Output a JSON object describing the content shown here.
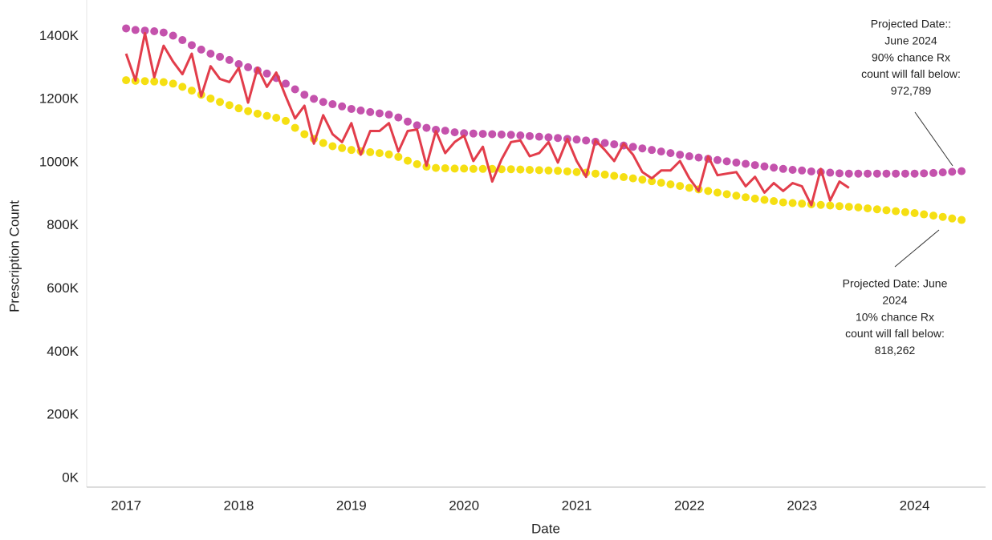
{
  "chart_data": {
    "type": "line",
    "x_label": "Date",
    "y_label": "Prescription Count",
    "x": [
      2017,
      2017.083,
      2017.167,
      2017.25,
      2017.333,
      2017.417,
      2017.5,
      2017.583,
      2017.667,
      2017.75,
      2017.833,
      2017.917,
      2018,
      2018.083,
      2018.167,
      2018.25,
      2018.333,
      2018.417,
      2018.5,
      2018.583,
      2018.667,
      2018.75,
      2018.833,
      2018.917,
      2019,
      2019.083,
      2019.167,
      2019.25,
      2019.333,
      2019.417,
      2019.5,
      2019.583,
      2019.667,
      2019.75,
      2019.833,
      2019.917,
      2020,
      2020.083,
      2020.167,
      2020.25,
      2020.333,
      2020.417,
      2020.5,
      2020.583,
      2020.667,
      2020.75,
      2020.833,
      2020.917,
      2021,
      2021.083,
      2021.167,
      2021.25,
      2021.333,
      2021.417,
      2021.5,
      2021.583,
      2021.667,
      2021.75,
      2021.833,
      2021.917,
      2022,
      2022.083,
      2022.167,
      2022.25,
      2022.333,
      2022.417,
      2022.5,
      2022.583,
      2022.667,
      2022.75,
      2022.833,
      2022.917,
      2023,
      2023.083,
      2023.167,
      2023.25,
      2023.333,
      2023.417,
      2023.5,
      2023.583,
      2023.667,
      2023.75,
      2023.833,
      2023.917,
      2024,
      2024.083,
      2024.167,
      2024.25,
      2024.333,
      2024.417
    ],
    "series": [
      {
        "color": "#c452ac",
        "mode": "markers",
        "values": [
          1425000,
          1420000,
          1418000,
          1416000,
          1412000,
          1402000,
          1388000,
          1372000,
          1358000,
          1345000,
          1335000,
          1325000,
          1312000,
          1302000,
          1292000,
          1282000,
          1268000,
          1250000,
          1232000,
          1215000,
          1202000,
          1192000,
          1185000,
          1178000,
          1170000,
          1165000,
          1160000,
          1156000,
          1152000,
          1143000,
          1130000,
          1118000,
          1110000,
          1104000,
          1101000,
          1096000,
          1093000,
          1092000,
          1091000,
          1090000,
          1089000,
          1088000,
          1086000,
          1084000,
          1082000,
          1080000,
          1078000,
          1075000,
          1073000,
          1070000,
          1066000,
          1062000,
          1058000,
          1054000,
          1050000,
          1045000,
          1040000,
          1035000,
          1030000,
          1025000,
          1020000,
          1016000,
          1012000,
          1008000,
          1004000,
          1000000,
          996000,
          992000,
          988000,
          984000,
          980000,
          977000,
          975000,
          972000,
          970000,
          968000,
          966000,
          965000,
          965000,
          965000,
          965000,
          965000,
          965000,
          965000,
          965000,
          966000,
          967000,
          969000,
          971000,
          972789
        ]
      },
      {
        "color": "#f5df12",
        "mode": "markers",
        "values": [
          1261000,
          1259000,
          1258000,
          1257000,
          1255000,
          1250000,
          1240000,
          1228000,
          1215000,
          1203000,
          1192000,
          1182000,
          1172000,
          1163000,
          1155000,
          1148000,
          1142000,
          1132000,
          1110000,
          1090000,
          1075000,
          1062000,
          1052000,
          1046000,
          1040000,
          1036000,
          1033000,
          1030000,
          1026000,
          1018000,
          1006000,
          995000,
          987000,
          983000,
          982000,
          981000,
          981000,
          980000,
          980000,
          980000,
          979000,
          979000,
          978000,
          977000,
          976000,
          975000,
          974000,
          972000,
          970000,
          968000,
          965000,
          962000,
          958000,
          954000,
          950000,
          946000,
          941000,
          936000,
          931000,
          926000,
          920000,
          915000,
          910000,
          905000,
          900000,
          895000,
          890000,
          886000,
          882000,
          878000,
          874000,
          872000,
          870000,
          868000,
          866000,
          864000,
          862000,
          860000,
          858000,
          855000,
          852000,
          849000,
          846000,
          843000,
          840000,
          836000,
          832000,
          828000,
          823000,
          818262
        ]
      },
      {
        "color": "#e23d4b",
        "mode": "lines",
        "values": [
          1345000,
          1260000,
          1410000,
          1270000,
          1370000,
          1320000,
          1280000,
          1345000,
          1210000,
          1305000,
          1265000,
          1255000,
          1300000,
          1190000,
          1300000,
          1240000,
          1285000,
          1210000,
          1140000,
          1180000,
          1060000,
          1150000,
          1090000,
          1065000,
          1125000,
          1025000,
          1100000,
          1100000,
          1125000,
          1035000,
          1100000,
          1105000,
          990000,
          1100000,
          1030000,
          1065000,
          1085000,
          1005000,
          1050000,
          940000,
          1010000,
          1065000,
          1070000,
          1020000,
          1030000,
          1065000,
          1000000,
          1075000,
          1005000,
          955000,
          1070000,
          1040000,
          1005000,
          1060000,
          1025000,
          970000,
          950000,
          975000,
          975000,
          1005000,
          950000,
          910000,
          1020000,
          960000,
          965000,
          970000,
          925000,
          955000,
          905000,
          935000,
          910000,
          935000,
          925000,
          865000,
          980000,
          880000,
          940000,
          920000,
          null,
          null,
          null,
          null,
          null,
          null,
          null,
          null,
          null,
          null,
          null,
          null
        ]
      }
    ],
    "xlim": [
      2016.65,
      2024.63
    ],
    "xticks": [
      2017,
      2018,
      2019,
      2020,
      2021,
      2022,
      2023,
      2024
    ],
    "ylim": [
      -28000,
      1515000
    ],
    "yticks": [
      {
        "value": 0,
        "label": "0K"
      },
      {
        "value": 200000,
        "label": "200K"
      },
      {
        "value": 400000,
        "label": "400K"
      },
      {
        "value": 600000,
        "label": "600K"
      },
      {
        "value": 800000,
        "label": "800K"
      },
      {
        "value": 1000000,
        "label": "1000K"
      },
      {
        "value": 1200000,
        "label": "1200K"
      },
      {
        "value": 1400000,
        "label": "1400K"
      }
    ],
    "grid": false,
    "annotations": [
      {
        "lines": [
          "Projected Date::",
          "June 2024",
          "90% chance Rx",
          "count will fall below:",
          "972,789"
        ]
      },
      {
        "lines": [
          "Projected Date: June",
          "2024",
          "10% chance Rx",
          "count will fall below:",
          "818,262"
        ]
      }
    ]
  }
}
